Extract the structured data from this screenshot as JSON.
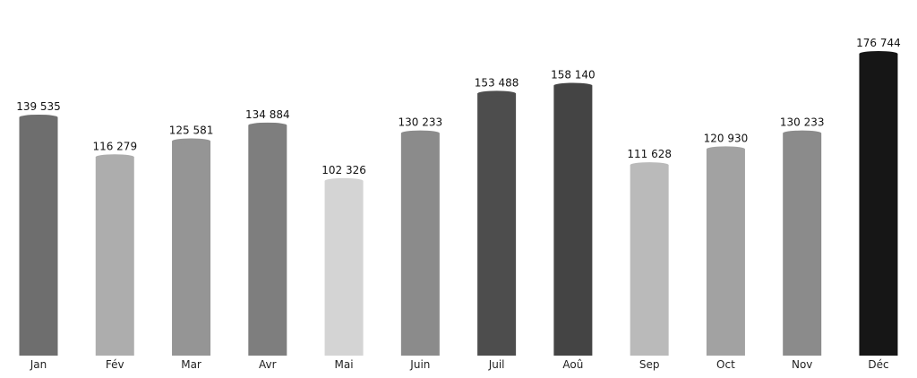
{
  "chart_data": {
    "type": "bar",
    "title": "",
    "xlabel": "",
    "ylabel": "",
    "categories": [
      "Jan",
      "Fév",
      "Mar",
      "Avr",
      "Mai",
      "Juin",
      "Juil",
      "Aoû",
      "Sep",
      "Oct",
      "Nov",
      "Déc"
    ],
    "values": [
      139535,
      116279,
      125581,
      134884,
      102326,
      130233,
      153488,
      158140,
      111628,
      120930,
      130233,
      176744
    ],
    "value_labels": [
      "139 535",
      "116 279",
      "125 581",
      "134 884",
      "102 326",
      "130 233",
      "153 488",
      "158 140",
      "111 628",
      "120 930",
      "130 233",
      "176 744"
    ],
    "colors": [
      "#6e6e6e",
      "#adadad",
      "#959595",
      "#7e7e7e",
      "#d4d4d4",
      "#8b8b8b",
      "#4d4d4d",
      "#444444",
      "#bababa",
      "#a2a2a2",
      "#8b8b8b",
      "#161616"
    ],
    "ylim": [
      0,
      176744
    ],
    "grid": false,
    "legend": "none"
  }
}
